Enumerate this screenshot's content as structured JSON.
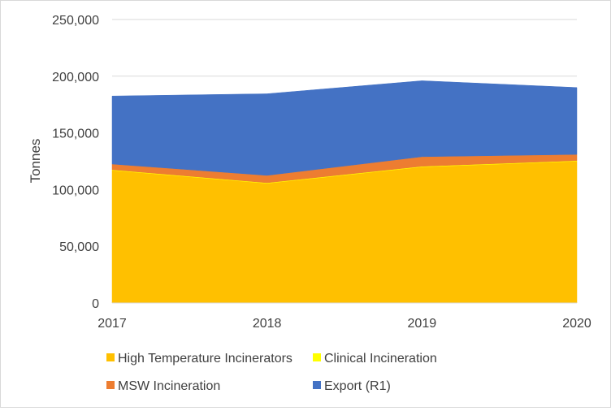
{
  "chart_data": {
    "type": "area",
    "stacked": true,
    "title": "",
    "xlabel": "",
    "ylabel": "Tonnes",
    "x": [
      "2017",
      "2018",
      "2019",
      "2020"
    ],
    "ylim": [
      0,
      250000
    ],
    "yticks": [
      0,
      50000,
      100000,
      150000,
      200000,
      250000
    ],
    "ytick_labels": [
      "0",
      "50,000",
      "100,000",
      "150,000",
      "200,000",
      "250,000"
    ],
    "grid": "horizontal",
    "legend_position": "bottom",
    "series": [
      {
        "name": "High Temperature Incinerators",
        "color": "#FFC000",
        "values": [
          117000,
          105500,
          120000,
          125000
        ]
      },
      {
        "name": "Clinical Incineration",
        "color": "#FFFF00",
        "values": [
          500,
          500,
          500,
          500
        ]
      },
      {
        "name": "MSW Incineration",
        "color": "#ED7D31",
        "values": [
          5000,
          6500,
          8500,
          5500
        ]
      },
      {
        "name": "Export (R1)",
        "color": "#4472C4",
        "values": [
          60000,
          72000,
          67000,
          59000
        ]
      }
    ]
  }
}
